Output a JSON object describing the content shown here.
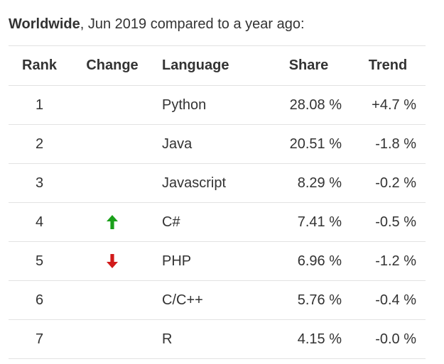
{
  "caption": {
    "region": "Worldwide",
    "rest": ", Jun 2019 compared to a year ago:"
  },
  "table": {
    "headers": {
      "rank": "Rank",
      "change": "Change",
      "language": "Language",
      "share": "Share",
      "trend": "Trend"
    },
    "rows": [
      {
        "rank": "1",
        "change": "",
        "language": "Python",
        "share": "28.08 %",
        "trend": "+4.7 %"
      },
      {
        "rank": "2",
        "change": "",
        "language": "Java",
        "share": "20.51 %",
        "trend": "-1.8 %"
      },
      {
        "rank": "3",
        "change": "",
        "language": "Javascript",
        "share": "8.29 %",
        "trend": "-0.2 %"
      },
      {
        "rank": "4",
        "change": "up",
        "language": "C#",
        "share": "7.41 %",
        "trend": "-0.5 %"
      },
      {
        "rank": "5",
        "change": "down",
        "language": "PHP",
        "share": "6.96 %",
        "trend": "-1.2 %"
      },
      {
        "rank": "6",
        "change": "",
        "language": "C/C++",
        "share": "5.76 %",
        "trend": "-0.4 %"
      },
      {
        "rank": "7",
        "change": "",
        "language": "R",
        "share": "4.15 %",
        "trend": "-0.0 %"
      }
    ]
  },
  "icons": {
    "up": "arrow-up-icon",
    "down": "arrow-down-icon"
  },
  "colors": {
    "up_arrow": "#1aa01a",
    "down_arrow": "#d11a1a",
    "text": "#333333",
    "rule": "#e2e2e2"
  }
}
